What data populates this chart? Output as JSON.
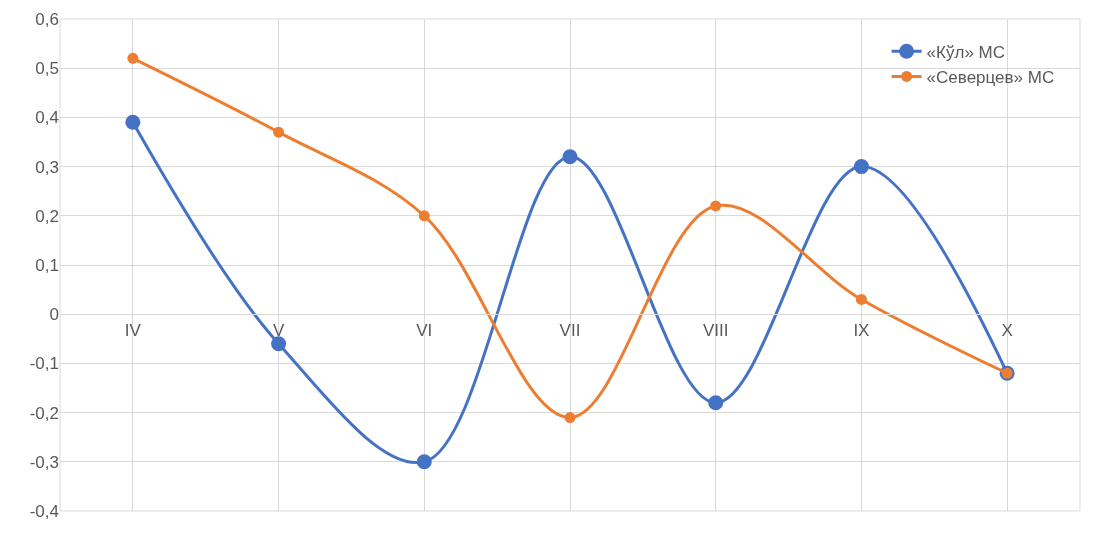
{
  "chart_data": {
    "type": "line",
    "categories": [
      "IV",
      "V",
      "VI",
      "VII",
      "VIII",
      "IX",
      "X"
    ],
    "series": [
      {
        "name": "«Кўл» МС",
        "color": "#4472c4",
        "values": [
          0.39,
          -0.06,
          -0.3,
          0.32,
          -0.18,
          0.3,
          -0.12
        ]
      },
      {
        "name": "«Северцев» МС",
        "color": "#ed7d31",
        "values": [
          0.52,
          0.37,
          0.2,
          -0.21,
          0.22,
          0.03,
          -0.12
        ]
      }
    ],
    "ylim": [
      -0.4,
      0.6
    ],
    "yticks": [
      {
        "value": -0.4,
        "label": "-0,4"
      },
      {
        "value": -0.3,
        "label": "-0,3"
      },
      {
        "value": -0.2,
        "label": "-0,2"
      },
      {
        "value": -0.1,
        "label": "-0,1"
      },
      0,
      {
        "value": 0.1,
        "label": "0,1"
      },
      {
        "value": 0.2,
        "label": "0,2"
      },
      {
        "value": 0.3,
        "label": "0,3"
      },
      {
        "value": 0.4,
        "label": "0,4"
      },
      {
        "value": 0.5,
        "label": "0,5"
      },
      {
        "value": 0.6,
        "label": "0,6"
      }
    ],
    "grid": true,
    "legend": "top right",
    "marker": "circle",
    "line_style": "solid"
  }
}
